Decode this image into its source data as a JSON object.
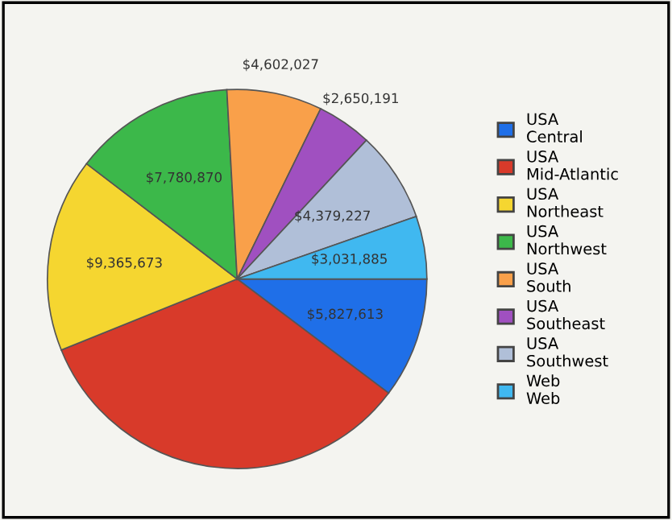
{
  "chart_data": {
    "type": "pie",
    "categories": [
      "USA\nCentral",
      "USA\nMid-Atlantic",
      "USA\nNortheast",
      "USA\nNorthwest",
      "USA\nSouth",
      "USA\nSoutheast",
      "USA\nSouthwest",
      "Web\nWeb"
    ],
    "values": [
      5827613,
      19050000,
      9365673,
      7780870,
      4602027,
      2650191,
      4379227,
      3031885
    ],
    "value_labels": [
      "$5,827,613",
      null,
      "$9,365,673",
      "$7,780,870",
      "$4,602,027",
      "$2,650,191",
      "$4,379,227",
      "$3,031,885"
    ],
    "colors": [
      "#1f6fe8",
      "#d83a2a",
      "#f5d630",
      "#3cb84a",
      "#f9a04a",
      "#a050c0",
      "#b0bfd8",
      "#40b8f0"
    ],
    "legend": "right"
  }
}
